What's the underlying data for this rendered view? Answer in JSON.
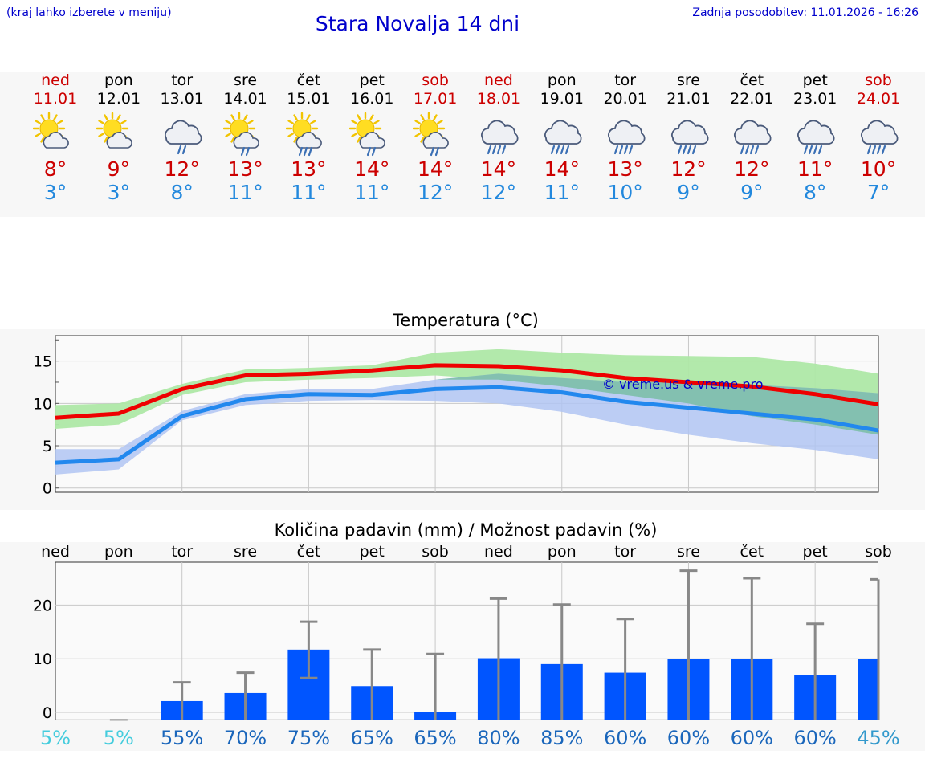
{
  "header": {
    "hint": "(kraj lahko izberete v meniju)",
    "title": "Stara Novalja 14 dni",
    "updated": "Zadnja posodobitev: 11.01.2026 - 16:26"
  },
  "colors": {
    "title": "#0000cc",
    "max_line": "#ee0000",
    "min_line": "#2288ee",
    "max_band": "#aee8a6",
    "min_band": "#b0c4f2",
    "overlap_band": "#7ebfaa",
    "bar": "#0055ff",
    "error_bar": "#888888",
    "watermark": "#0000cc"
  },
  "days": [
    {
      "name": "ned",
      "date": "11.01",
      "weekend": true,
      "icon": "sun-cloud-icon",
      "max": "8°",
      "min": "3°"
    },
    {
      "name": "pon",
      "date": "12.01",
      "weekend": false,
      "icon": "sun-cloud-icon",
      "max": "9°",
      "min": "3°"
    },
    {
      "name": "tor",
      "date": "13.01",
      "weekend": false,
      "icon": "cloud-rain-icon",
      "max": "12°",
      "min": "8°"
    },
    {
      "name": "sre",
      "date": "14.01",
      "weekend": false,
      "icon": "sun-cloud-rain-icon",
      "max": "13°",
      "min": "11°"
    },
    {
      "name": "čet",
      "date": "15.01",
      "weekend": false,
      "icon": "sun-cloud-heavy-rain-icon",
      "max": "13°",
      "min": "11°"
    },
    {
      "name": "pet",
      "date": "16.01",
      "weekend": false,
      "icon": "sun-cloud-rain-icon",
      "max": "14°",
      "min": "11°"
    },
    {
      "name": "sob",
      "date": "17.01",
      "weekend": true,
      "icon": "sun-cloud-rain-icon",
      "max": "14°",
      "min": "12°"
    },
    {
      "name": "ned",
      "date": "18.01",
      "weekend": true,
      "icon": "cloud-heavy-rain-icon",
      "max": "14°",
      "min": "12°"
    },
    {
      "name": "pon",
      "date": "19.01",
      "weekend": false,
      "icon": "cloud-heavy-rain-icon",
      "max": "14°",
      "min": "11°"
    },
    {
      "name": "tor",
      "date": "20.01",
      "weekend": false,
      "icon": "cloud-heavy-rain-icon",
      "max": "13°",
      "min": "10°"
    },
    {
      "name": "sre",
      "date": "21.01",
      "weekend": false,
      "icon": "cloud-heavy-rain-icon",
      "max": "12°",
      "min": "9°"
    },
    {
      "name": "čet",
      "date": "22.01",
      "weekend": false,
      "icon": "cloud-heavy-rain-icon",
      "max": "12°",
      "min": "9°"
    },
    {
      "name": "pet",
      "date": "23.01",
      "weekend": false,
      "icon": "cloud-heavy-rain-icon",
      "max": "11°",
      "min": "8°"
    },
    {
      "name": "sob",
      "date": "24.01",
      "weekend": true,
      "icon": "cloud-heavy-rain-icon",
      "max": "10°",
      "min": "7°"
    }
  ],
  "chart_data": [
    {
      "type": "line",
      "title": "Temperatura (°C)",
      "xlabel": "",
      "ylabel": "",
      "ylim": [
        -0.5,
        18
      ],
      "yticks": [
        0,
        5,
        10,
        15
      ],
      "x_days": 14,
      "watermark": "© vreme.us & vreme.pro",
      "series": [
        {
          "name": "max",
          "values": [
            8.3,
            8.8,
            11.7,
            13.3,
            13.5,
            13.9,
            14.5,
            14.4,
            13.9,
            13.0,
            12.5,
            12.0,
            11.1,
            9.9
          ],
          "band_low": [
            7.0,
            7.5,
            11.0,
            12.5,
            12.8,
            13.0,
            13.3,
            12.8,
            12.0,
            11.0,
            10.0,
            8.5,
            7.5,
            6.3
          ],
          "band_high": [
            9.8,
            10.0,
            12.3,
            14.0,
            14.2,
            14.5,
            16.0,
            16.4,
            16.0,
            15.7,
            15.6,
            15.5,
            14.7,
            13.5
          ]
        },
        {
          "name": "min",
          "values": [
            3.0,
            3.4,
            8.5,
            10.5,
            11.1,
            11.0,
            11.7,
            11.9,
            11.3,
            10.2,
            9.5,
            8.8,
            8.1,
            6.8
          ],
          "band_low": [
            1.6,
            2.2,
            8.0,
            9.8,
            10.3,
            10.4,
            10.3,
            10.0,
            9.0,
            7.5,
            6.3,
            5.3,
            4.5,
            3.4
          ],
          "band_high": [
            4.6,
            4.6,
            9.1,
            11.1,
            11.7,
            11.7,
            12.8,
            13.5,
            13.0,
            12.5,
            12.5,
            12.2,
            11.8,
            11.2
          ]
        }
      ]
    },
    {
      "type": "bar",
      "title": "Količina padavin (mm) / Možnost padavin (%)",
      "ylim": [
        -1.5,
        28
      ],
      "yticks": [
        0,
        10,
        20
      ],
      "categories": [
        "ned",
        "pon",
        "tor",
        "sre",
        "čet",
        "pet",
        "sob",
        "ned",
        "pon",
        "tor",
        "sre",
        "čet",
        "pet",
        "sob"
      ],
      "values": [
        0.0,
        0.0,
        2.1,
        3.6,
        11.7,
        4.9,
        0.1,
        10.1,
        9.0,
        7.4,
        10.0,
        9.9,
        7.0,
        10.0
      ],
      "error_low": [
        null,
        0.0,
        0.0,
        0.0,
        6.4,
        0.0,
        0.0,
        0.0,
        0.0,
        0.0,
        0.0,
        0.0,
        0.0,
        0.0
      ],
      "error_high": [
        null,
        0.0,
        5.6,
        7.4,
        16.9,
        11.7,
        10.9,
        21.2,
        20.1,
        17.4,
        26.4,
        25.0,
        16.5,
        24.8
      ],
      "probability": [
        "5%",
        "5%",
        "55%",
        "70%",
        "75%",
        "65%",
        "65%",
        "80%",
        "85%",
        "60%",
        "60%",
        "60%",
        "60%",
        "45%"
      ],
      "probability_colors": [
        "#44ccdd",
        "#44ccdd",
        "#1a66bb",
        "#1a66bb",
        "#1a66bb",
        "#1a66bb",
        "#1a66bb",
        "#1a66bb",
        "#1a66bb",
        "#1a66bb",
        "#1a66bb",
        "#1a66bb",
        "#1a66bb",
        "#3399cc"
      ]
    }
  ]
}
